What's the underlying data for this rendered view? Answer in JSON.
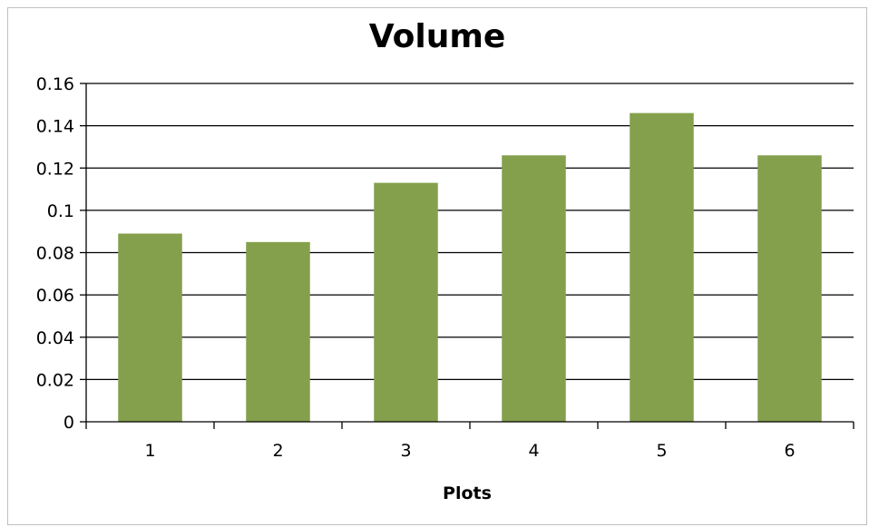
{
  "chart_data": {
    "type": "bar",
    "title": "Volume",
    "xlabel": "Plots",
    "ylabel": "",
    "categories": [
      "1",
      "2",
      "3",
      "4",
      "5",
      "6"
    ],
    "values": [
      0.089,
      0.085,
      0.113,
      0.126,
      0.146,
      0.126
    ],
    "ylim": [
      0,
      0.16
    ],
    "yticks": [
      0,
      0.02,
      0.04,
      0.06,
      0.08,
      0.1,
      0.12,
      0.14,
      0.16
    ],
    "ytick_labels": [
      "0",
      "0.02",
      "0.04",
      "0.06",
      "0.08",
      "0.1",
      "0.12",
      "0.14",
      "0.16"
    ],
    "grid": true,
    "legend": "none",
    "bar_color": "#84a04c",
    "grid_color": "#000000"
  }
}
